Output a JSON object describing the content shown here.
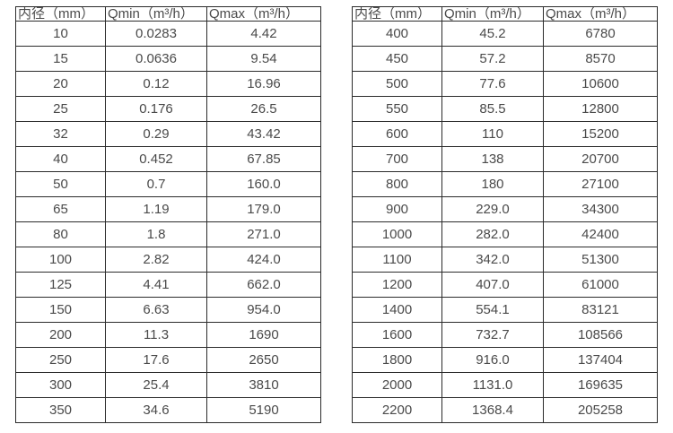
{
  "colors": {
    "border": "#2b2b2b",
    "text": "#4a4a4a",
    "background": "#ffffff"
  },
  "tables": [
    {
      "name": "spec-table-small-diameters",
      "headers": [
        "内径（mm）",
        "Qmin（m³/h）",
        "Qmax（m³/h）"
      ],
      "rows": [
        [
          "10",
          "0.0283",
          "4.42"
        ],
        [
          "15",
          "0.0636",
          "9.54"
        ],
        [
          "20",
          "0.12",
          "16.96"
        ],
        [
          "25",
          "0.176",
          "26.5"
        ],
        [
          "32",
          "0.29",
          "43.42"
        ],
        [
          "40",
          "0.452",
          "67.85"
        ],
        [
          "50",
          "0.7",
          "160.0"
        ],
        [
          "65",
          "1.19",
          "179.0"
        ],
        [
          "80",
          "1.8",
          "271.0"
        ],
        [
          "100",
          "2.82",
          "424.0"
        ],
        [
          "125",
          "4.41",
          "662.0"
        ],
        [
          "150",
          "6.63",
          "954.0"
        ],
        [
          "200",
          "11.3",
          "1690"
        ],
        [
          "250",
          "17.6",
          "2650"
        ],
        [
          "300",
          "25.4",
          "3810"
        ],
        [
          "350",
          "34.6",
          "5190"
        ]
      ]
    },
    {
      "name": "spec-table-large-diameters",
      "headers": [
        "内径（mm）",
        "Qmin（m³/h）",
        "Qmax（m³/h）"
      ],
      "rows": [
        [
          "400",
          "45.2",
          "6780"
        ],
        [
          "450",
          "57.2",
          "8570"
        ],
        [
          "500",
          "77.6",
          "10600"
        ],
        [
          "550",
          "85.5",
          "12800"
        ],
        [
          "600",
          "110",
          "15200"
        ],
        [
          "700",
          "138",
          "20700"
        ],
        [
          "800",
          "180",
          "27100"
        ],
        [
          "900",
          "229.0",
          "34300"
        ],
        [
          "1000",
          "282.0",
          "42400"
        ],
        [
          "1100",
          "342.0",
          "51300"
        ],
        [
          "1200",
          "407.0",
          "61000"
        ],
        [
          "1400",
          "554.1",
          "83121"
        ],
        [
          "1600",
          "732.7",
          "108566"
        ],
        [
          "1800",
          "916.0",
          "137404"
        ],
        [
          "2000",
          "1131.0",
          "169635"
        ],
        [
          "2200",
          "1368.4",
          "205258"
        ]
      ]
    }
  ]
}
